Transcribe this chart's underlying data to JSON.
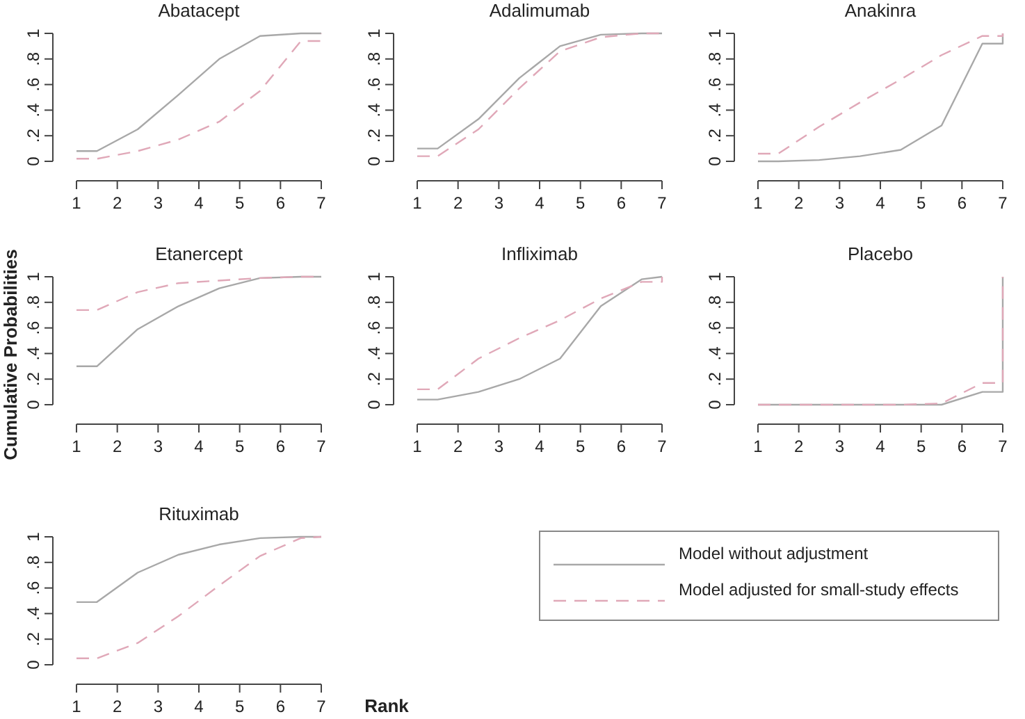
{
  "chart_data": [
    {
      "type": "line",
      "title": "Abatacept",
      "xlim": [
        1,
        7
      ],
      "ylim": [
        0,
        1
      ],
      "xticks": [
        {
          "value": 1,
          "label": "1"
        },
        {
          "value": 2,
          "label": "2"
        },
        {
          "value": 3,
          "label": "3"
        },
        {
          "value": 4,
          "label": "4"
        },
        {
          "value": 5,
          "label": "5"
        },
        {
          "value": 6,
          "label": "6"
        },
        {
          "value": 7,
          "label": "7"
        }
      ],
      "yticks": [
        {
          "value": 0,
          "label": "0"
        },
        {
          "value": 0.2,
          "label": ".2"
        },
        {
          "value": 0.4,
          "label": ".4"
        },
        {
          "value": 0.6,
          "label": ".6"
        },
        {
          "value": 0.8,
          "label": ".8"
        },
        {
          "value": 1,
          "label": "1"
        }
      ],
      "grid": false,
      "legend": false,
      "x": [
        1,
        1.5,
        2.5,
        3.5,
        4.5,
        5.5,
        6.5,
        7,
        7
      ],
      "series": [
        {
          "color": "#a8a8a8",
          "line_style": "solid",
          "values": [
            0.08,
            0.08,
            0.25,
            0.52,
            0.8,
            0.98,
            1,
            1,
            1
          ]
        },
        {
          "color": "#e0a8b8",
          "line_style": "dashed",
          "values": [
            0.02,
            0.02,
            0.08,
            0.17,
            0.31,
            0.55,
            0.94,
            0.94,
            1
          ]
        }
      ]
    },
    {
      "type": "line",
      "title": "Adalimumab",
      "xlim": [
        1,
        7
      ],
      "ylim": [
        0,
        1
      ],
      "xticks": [
        {
          "value": 1,
          "label": "1"
        },
        {
          "value": 2,
          "label": "2"
        },
        {
          "value": 3,
          "label": "3"
        },
        {
          "value": 4,
          "label": "4"
        },
        {
          "value": 5,
          "label": "5"
        },
        {
          "value": 6,
          "label": "6"
        },
        {
          "value": 7,
          "label": "7"
        }
      ],
      "yticks": [
        {
          "value": 0,
          "label": "0"
        },
        {
          "value": 0.2,
          "label": ".2"
        },
        {
          "value": 0.4,
          "label": ".4"
        },
        {
          "value": 0.6,
          "label": ".6"
        },
        {
          "value": 0.8,
          "label": ".8"
        },
        {
          "value": 1,
          "label": "1"
        }
      ],
      "grid": false,
      "legend": false,
      "x": [
        1,
        1.5,
        2.5,
        3.5,
        4.5,
        5.5,
        6.5,
        7,
        7
      ],
      "series": [
        {
          "color": "#a8a8a8",
          "line_style": "solid",
          "values": [
            0.1,
            0.1,
            0.33,
            0.65,
            0.9,
            0.99,
            1,
            1,
            1
          ]
        },
        {
          "color": "#e0a8b8",
          "line_style": "dashed",
          "values": [
            0.04,
            0.04,
            0.25,
            0.57,
            0.86,
            0.97,
            1,
            1,
            1
          ]
        }
      ]
    },
    {
      "type": "line",
      "title": "Anakinra",
      "xlim": [
        1,
        7
      ],
      "ylim": [
        0,
        1
      ],
      "xticks": [
        {
          "value": 1,
          "label": "1"
        },
        {
          "value": 2,
          "label": "2"
        },
        {
          "value": 3,
          "label": "3"
        },
        {
          "value": 4,
          "label": "4"
        },
        {
          "value": 5,
          "label": "5"
        },
        {
          "value": 6,
          "label": "6"
        },
        {
          "value": 7,
          "label": "7"
        }
      ],
      "yticks": [
        {
          "value": 0,
          "label": "0"
        },
        {
          "value": 0.2,
          "label": ".2"
        },
        {
          "value": 0.4,
          "label": ".4"
        },
        {
          "value": 0.6,
          "label": ".6"
        },
        {
          "value": 0.8,
          "label": ".8"
        },
        {
          "value": 1,
          "label": "1"
        }
      ],
      "grid": false,
      "legend": false,
      "x": [
        1,
        1.5,
        2.5,
        3.5,
        4.5,
        5.5,
        6.5,
        7,
        7
      ],
      "series": [
        {
          "color": "#a8a8a8",
          "line_style": "solid",
          "values": [
            0,
            0,
            0.01,
            0.04,
            0.09,
            0.28,
            0.92,
            0.92,
            1
          ]
        },
        {
          "color": "#e0a8b8",
          "line_style": "dashed",
          "values": [
            0.06,
            0.06,
            0.27,
            0.46,
            0.64,
            0.83,
            0.98,
            0.98,
            1
          ]
        }
      ]
    },
    {
      "type": "line",
      "title": "Etanercept",
      "ylabel": "Cumulative Probabilities",
      "xlim": [
        1,
        7
      ],
      "ylim": [
        0,
        1
      ],
      "xticks": [
        {
          "value": 1,
          "label": "1"
        },
        {
          "value": 2,
          "label": "2"
        },
        {
          "value": 3,
          "label": "3"
        },
        {
          "value": 4,
          "label": "4"
        },
        {
          "value": 5,
          "label": "5"
        },
        {
          "value": 6,
          "label": "6"
        },
        {
          "value": 7,
          "label": "7"
        }
      ],
      "yticks": [
        {
          "value": 0,
          "label": "0"
        },
        {
          "value": 0.2,
          "label": ".2"
        },
        {
          "value": 0.4,
          "label": ".4"
        },
        {
          "value": 0.6,
          "label": ".6"
        },
        {
          "value": 0.8,
          "label": ".8"
        },
        {
          "value": 1,
          "label": "1"
        }
      ],
      "grid": false,
      "legend": false,
      "x": [
        1,
        1.5,
        2.5,
        3.5,
        4.5,
        5.5,
        6.5,
        7,
        7
      ],
      "series": [
        {
          "color": "#a8a8a8",
          "line_style": "solid",
          "values": [
            0.3,
            0.3,
            0.59,
            0.77,
            0.91,
            0.99,
            1,
            1,
            1
          ]
        },
        {
          "color": "#e0a8b8",
          "line_style": "dashed",
          "values": [
            0.74,
            0.74,
            0.88,
            0.95,
            0.97,
            0.99,
            1,
            1,
            1
          ]
        }
      ]
    },
    {
      "type": "line",
      "title": "Infliximab",
      "xlim": [
        1,
        7
      ],
      "ylim": [
        0,
        1
      ],
      "xticks": [
        {
          "value": 1,
          "label": "1"
        },
        {
          "value": 2,
          "label": "2"
        },
        {
          "value": 3,
          "label": "3"
        },
        {
          "value": 4,
          "label": "4"
        },
        {
          "value": 5,
          "label": "5"
        },
        {
          "value": 6,
          "label": "6"
        },
        {
          "value": 7,
          "label": "7"
        }
      ],
      "yticks": [
        {
          "value": 0,
          "label": "0"
        },
        {
          "value": 0.2,
          "label": ".2"
        },
        {
          "value": 0.4,
          "label": ".4"
        },
        {
          "value": 0.6,
          "label": ".6"
        },
        {
          "value": 0.8,
          "label": ".8"
        },
        {
          "value": 1,
          "label": "1"
        }
      ],
      "grid": false,
      "legend": false,
      "x": [
        1,
        1.5,
        2.5,
        3.5,
        4.5,
        5.5,
        6.5,
        7,
        7
      ],
      "series": [
        {
          "color": "#a8a8a8",
          "line_style": "solid",
          "values": [
            0.04,
            0.04,
            0.1,
            0.2,
            0.36,
            0.77,
            0.98,
            1,
            1
          ]
        },
        {
          "color": "#e0a8b8",
          "line_style": "dashed",
          "values": [
            0.12,
            0.12,
            0.36,
            0.52,
            0.66,
            0.83,
            0.96,
            0.96,
            1
          ]
        }
      ]
    },
    {
      "type": "line",
      "title": "Placebo",
      "xlim": [
        1,
        7
      ],
      "ylim": [
        0,
        1
      ],
      "xticks": [
        {
          "value": 1,
          "label": "1"
        },
        {
          "value": 2,
          "label": "2"
        },
        {
          "value": 3,
          "label": "3"
        },
        {
          "value": 4,
          "label": "4"
        },
        {
          "value": 5,
          "label": "5"
        },
        {
          "value": 6,
          "label": "6"
        },
        {
          "value": 7,
          "label": "7"
        }
      ],
      "yticks": [
        {
          "value": 0,
          "label": "0"
        },
        {
          "value": 0.2,
          "label": ".2"
        },
        {
          "value": 0.4,
          "label": ".4"
        },
        {
          "value": 0.6,
          "label": ".6"
        },
        {
          "value": 0.8,
          "label": ".8"
        },
        {
          "value": 1,
          "label": "1"
        }
      ],
      "grid": false,
      "legend": false,
      "x": [
        1,
        1.5,
        2.5,
        3.5,
        4.5,
        5.5,
        6.5,
        7,
        7
      ],
      "series": [
        {
          "color": "#a8a8a8",
          "line_style": "solid",
          "values": [
            0,
            0,
            0,
            0,
            0,
            0,
            0.1,
            0.1,
            1
          ]
        },
        {
          "color": "#e0a8b8",
          "line_style": "dashed",
          "values": [
            0,
            0,
            0,
            0,
            0,
            0.01,
            0.17,
            0.17,
            1
          ]
        }
      ]
    },
    {
      "type": "line",
      "title": "Rituximab",
      "xlabel": "Rank",
      "xlim": [
        1,
        7
      ],
      "ylim": [
        0,
        1
      ],
      "xticks": [
        {
          "value": 1,
          "label": "1"
        },
        {
          "value": 2,
          "label": "2"
        },
        {
          "value": 3,
          "label": "3"
        },
        {
          "value": 4,
          "label": "4"
        },
        {
          "value": 5,
          "label": "5"
        },
        {
          "value": 6,
          "label": "6"
        },
        {
          "value": 7,
          "label": "7"
        }
      ],
      "yticks": [
        {
          "value": 0,
          "label": "0"
        },
        {
          "value": 0.2,
          "label": ".2"
        },
        {
          "value": 0.4,
          "label": ".4"
        },
        {
          "value": 0.6,
          "label": ".6"
        },
        {
          "value": 0.8,
          "label": ".8"
        },
        {
          "value": 1,
          "label": "1"
        }
      ],
      "grid": false,
      "legend": "right",
      "x": [
        1,
        1.5,
        2.5,
        3.5,
        4.5,
        5.5,
        6.5,
        7,
        7
      ],
      "series": [
        {
          "name": "Model without adjustment",
          "color": "#a8a8a8",
          "line_style": "solid",
          "values": [
            0.49,
            0.49,
            0.72,
            0.86,
            0.94,
            0.99,
            1,
            1,
            1
          ]
        },
        {
          "name": "Model adjusted for small-study effects",
          "color": "#e0a8b8",
          "line_style": "dashed",
          "values": [
            0.05,
            0.05,
            0.17,
            0.38,
            0.62,
            0.85,
            0.99,
            1,
            1
          ]
        }
      ]
    }
  ]
}
